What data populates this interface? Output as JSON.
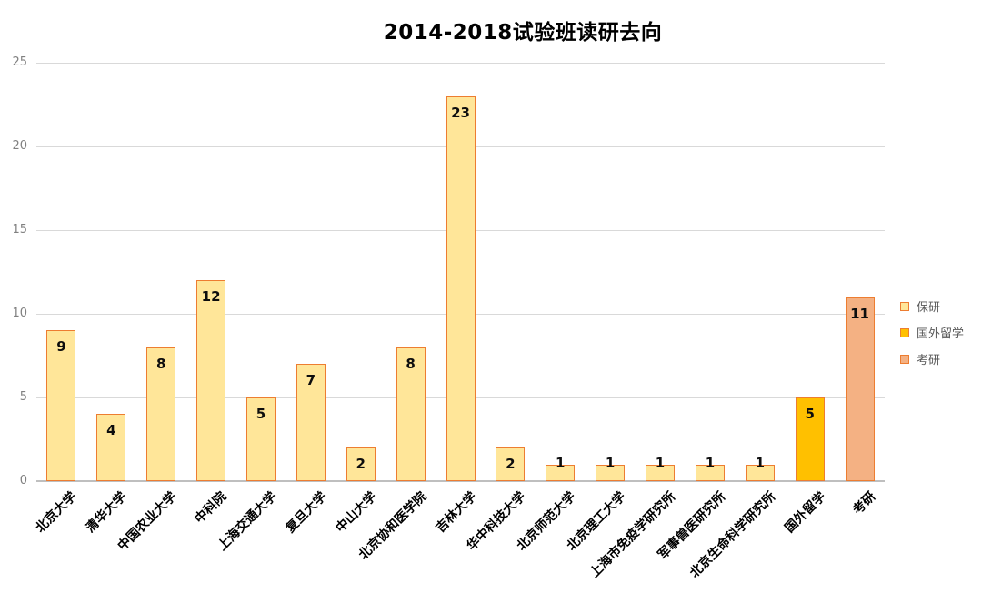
{
  "title": "2014-2018试验班读研去向",
  "chart_data": {
    "type": "bar",
    "title": "2014-2018试验班读研去向",
    "categories": [
      "北京大学",
      "清华大学",
      "中国农业大学",
      "中科院",
      "上海交通大学",
      "复旦大学",
      "中山大学",
      "北京协和医学院",
      "吉林大学",
      "华中科技大学",
      "北京师范大学",
      "北京理工大学",
      "上海市免疫学研究所",
      "军事兽医研究所",
      "北京生命科学研究所",
      "国外留学",
      "考研"
    ],
    "values": [
      9,
      4,
      8,
      12,
      5,
      7,
      2,
      8,
      23,
      2,
      1,
      1,
      1,
      1,
      1,
      5,
      11
    ],
    "bar_series": [
      "保研",
      "保研",
      "保研",
      "保研",
      "保研",
      "保研",
      "保研",
      "保研",
      "保研",
      "保研",
      "保研",
      "保研",
      "保研",
      "保研",
      "保研",
      "国外留学",
      "考研"
    ],
    "xlabel": "",
    "ylabel": "",
    "ylim": [
      0,
      25
    ],
    "yticks": [
      0,
      5,
      10,
      15,
      20,
      25
    ],
    "grid": true,
    "legend_position": "right",
    "legend": [
      {
        "label": "保研",
        "fill": "#FFE699",
        "border": "#ED7D31"
      },
      {
        "label": "国外留学",
        "fill": "#FFC000",
        "border": "#ED7D31"
      },
      {
        "label": "考研",
        "fill": "#F4B183",
        "border": "#ED7D31"
      }
    ],
    "colors": {
      "gridline": "#d9d9d9",
      "axis_line": "#bfbfbf",
      "tick_text": "#808080",
      "legend_text": "#595959",
      "label_text": "#0d0d0d"
    }
  }
}
